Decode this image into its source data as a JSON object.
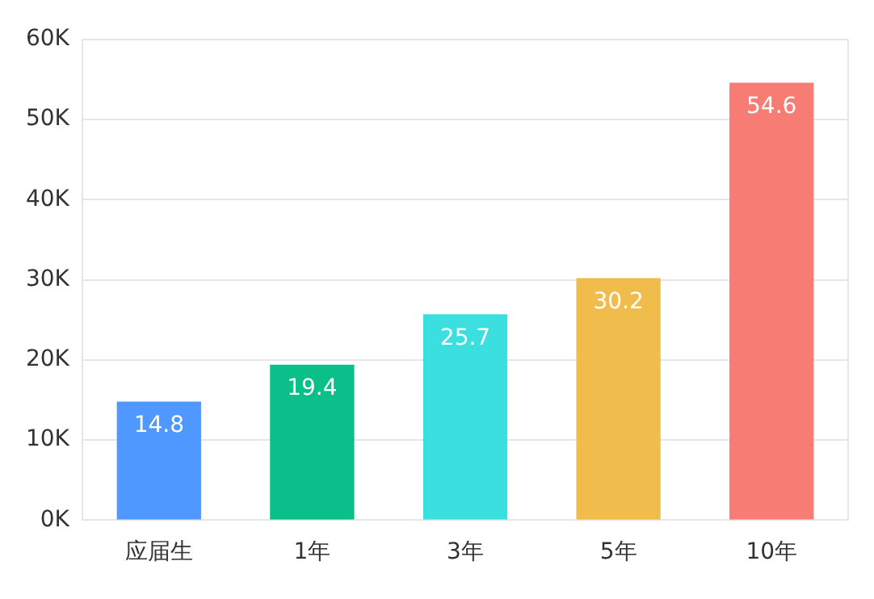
{
  "chart_data": {
    "type": "bar",
    "categories": [
      "应届生",
      "1年",
      "3年",
      "5年",
      "10年"
    ],
    "values": [
      14.8,
      19.4,
      25.7,
      30.2,
      54.6
    ],
    "colors": [
      "#4f98ff",
      "#0bbf8b",
      "#3bdfe0",
      "#f0bc4c",
      "#f77c74"
    ],
    "ylim": [
      0,
      60
    ],
    "yticks": [
      {
        "value": 0,
        "label": "0K"
      },
      {
        "value": 10,
        "label": "10K"
      },
      {
        "value": 20,
        "label": "20K"
      },
      {
        "value": 30,
        "label": "30K"
      },
      {
        "value": 40,
        "label": "40K"
      },
      {
        "value": 50,
        "label": "50K"
      },
      {
        "value": 60,
        "label": "60K"
      }
    ],
    "grid": "y",
    "data_labels": true,
    "legend": false
  }
}
